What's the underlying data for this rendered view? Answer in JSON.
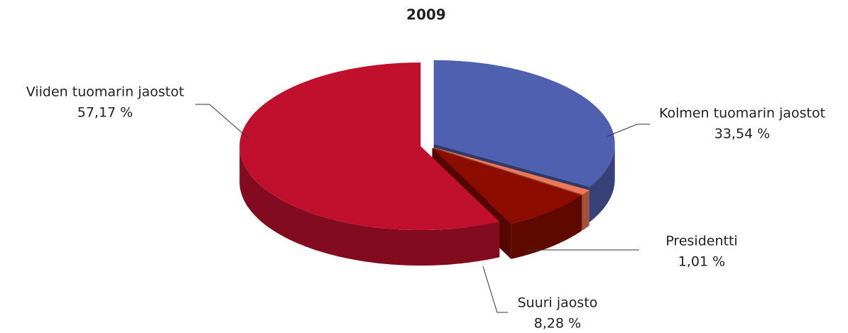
{
  "chart_data": {
    "type": "pie3d",
    "title": "2009",
    "categories": [
      "Kolmen tuomarin jaostot",
      "Presidentti",
      "Suuri jaosto",
      "Viiden tuomarin jaostot"
    ],
    "values": [
      33.54,
      1.01,
      8.28,
      57.17
    ],
    "value_labels": [
      "33,54 %",
      "1,01 %",
      "8,28 %",
      "57,17 %"
    ],
    "colors": [
      "#5060b0",
      "#f07858",
      "#8c0c00",
      "#c0102e"
    ]
  }
}
